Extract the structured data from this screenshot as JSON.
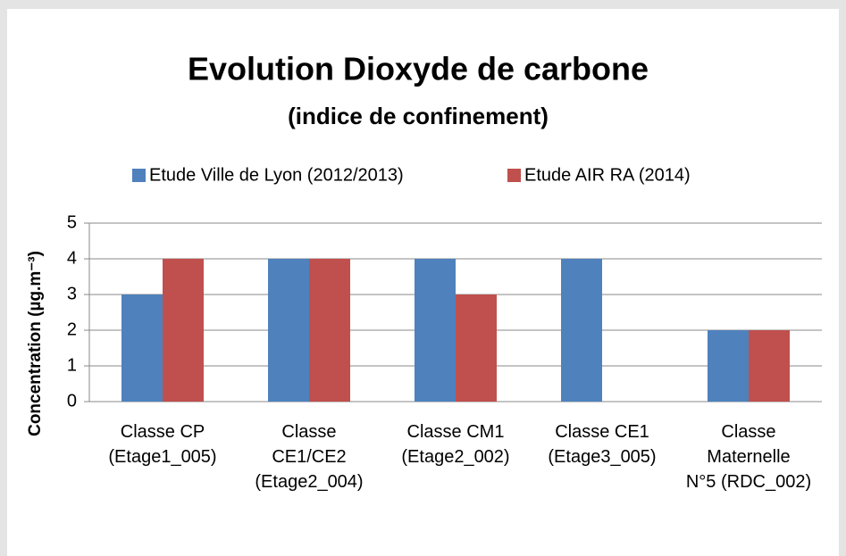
{
  "chart_data": {
    "type": "bar",
    "title": "Evolution Dioxyde de carbone",
    "subtitle": "(indice de confinement)",
    "y_label": "Concentration (µg.m⁻³)",
    "categories": [
      "Classe CP\n(Etage1_005)",
      "Classe\nCE1/CE2\n(Etage2_004)",
      "Classe CM1\n(Etage2_002)",
      "Classe CE1\n(Etage3_005)",
      "Classe\nMaternelle\nN°5 (RDC_002)"
    ],
    "series": [
      {
        "name": "Etude Ville de Lyon (2012/2013)",
        "color": "#4f81bd",
        "values": [
          3,
          4,
          4,
          4,
          2
        ]
      },
      {
        "name": "Etude AIR RA (2014)",
        "color": "#c0504d",
        "values": [
          4,
          4,
          3,
          null,
          2
        ]
      }
    ],
    "ylim": [
      0,
      5
    ],
    "yticks": [
      0,
      1,
      2,
      3,
      4,
      5
    ],
    "grid": true,
    "legend": "top"
  }
}
